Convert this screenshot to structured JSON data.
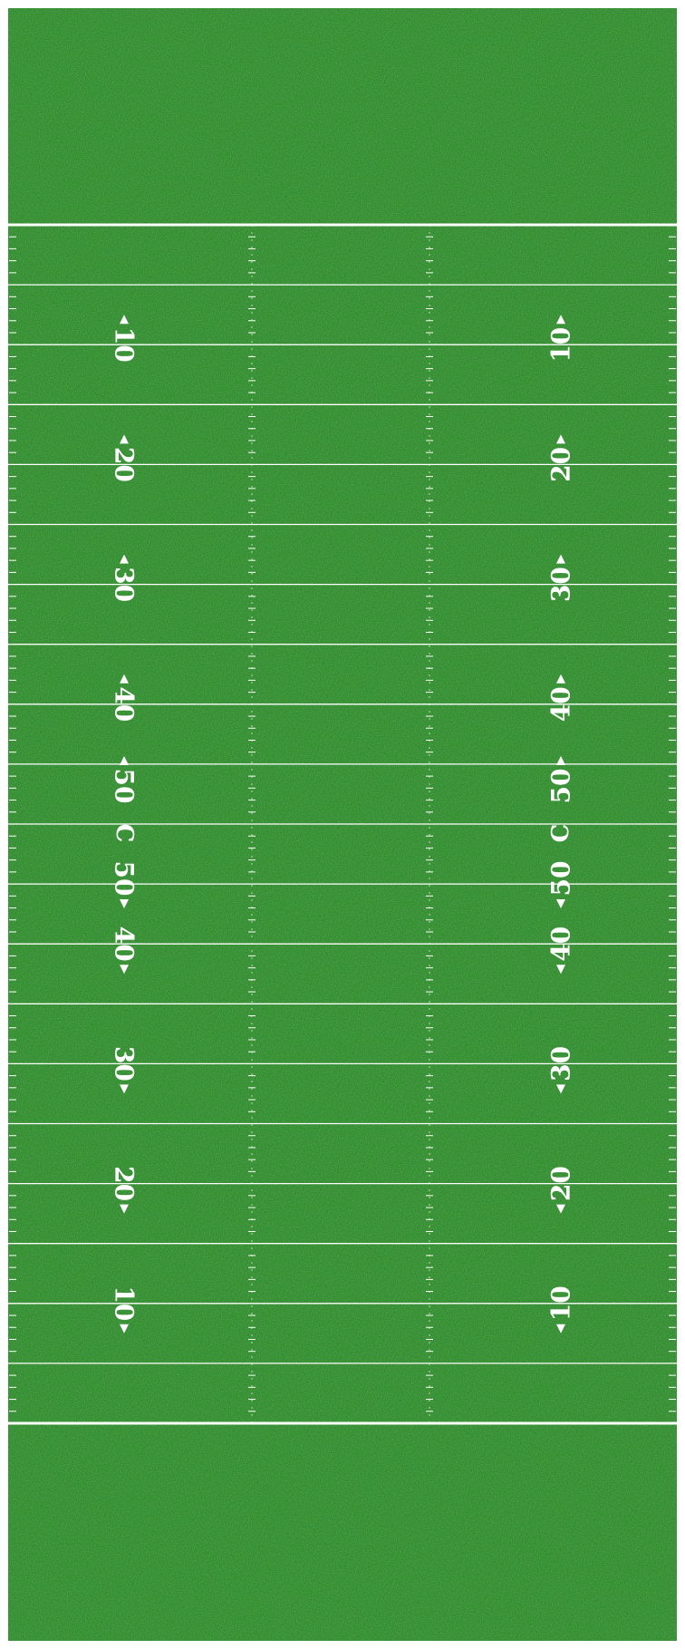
{
  "field": {
    "yard_numbers_left": [
      "10",
      "20",
      "30",
      "40",
      "50",
      "C",
      "50",
      "40",
      "30",
      "20",
      "10"
    ],
    "yard_numbers_right": [
      "10",
      "20",
      "30",
      "40",
      "50",
      "C",
      "50",
      "40",
      "30",
      "20",
      "10"
    ],
    "colors": {
      "turf": "#2f8a2b",
      "turf_dark": "#226e22",
      "turf_light": "#3fa03a",
      "line": "#ffffff"
    }
  }
}
